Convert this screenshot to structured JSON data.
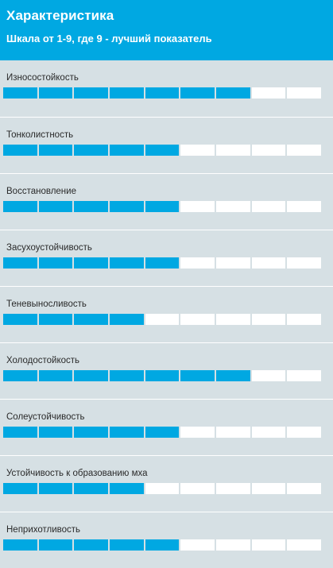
{
  "header": {
    "title": "Характеристика",
    "subtitle": "Шкала от 1-9, где 9 - лучший показатель"
  },
  "scale_max": 9,
  "colors": {
    "accent": "#00a8e2",
    "empty": "#ffffff",
    "background": "#d6e0e4"
  },
  "characteristics": [
    {
      "label": "Износостойкость",
      "value": 7
    },
    {
      "label": "Тонколистность",
      "value": 5
    },
    {
      "label": "Восстановление",
      "value": 5
    },
    {
      "label": "Засухоустойчивость",
      "value": 5
    },
    {
      "label": "Теневыносливость",
      "value": 4
    },
    {
      "label": "Холодостойкость",
      "value": 7
    },
    {
      "label": "Солеустойчивость",
      "value": 5
    },
    {
      "label": "Устойчивость к образованию мха",
      "value": 4
    },
    {
      "label": "Неприхотливость",
      "value": 5
    }
  ]
}
